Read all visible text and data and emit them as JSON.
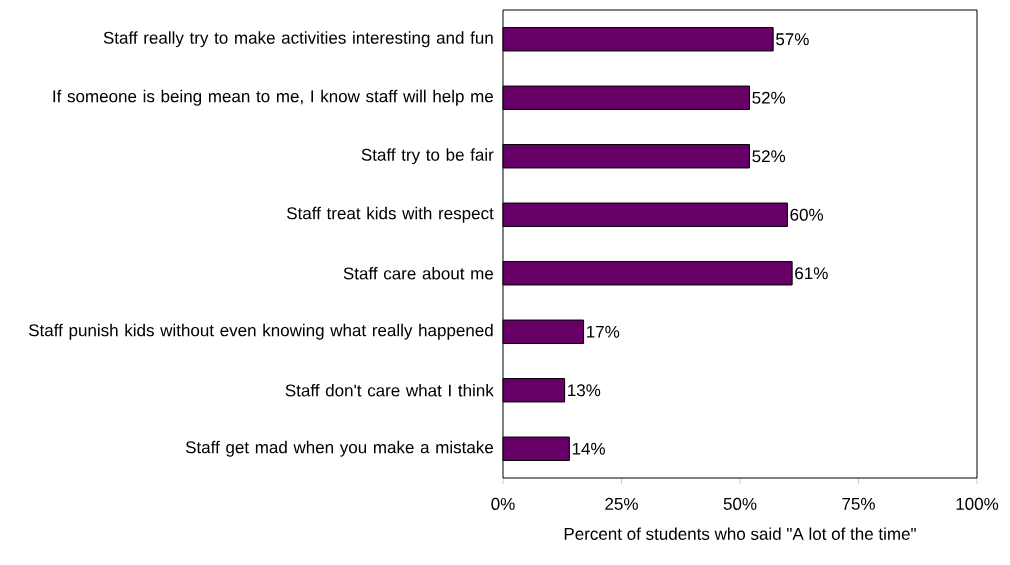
{
  "chart_data": {
    "type": "bar",
    "orientation": "horizontal",
    "xlabel": "Percent of students who said \"A lot of the time\"",
    "categories": [
      "Staff really try to make activities interesting and fun",
      "If someone is being mean to me, I know staff will help me",
      "Staff try to be fair",
      "Staff treat kids with respect",
      "Staff care about me",
      "Staff punish kids without even knowing what really happened",
      "Staff don't care what I think",
      "Staff get mad when you make a mistake"
    ],
    "values": [
      57,
      52,
      52,
      60,
      61,
      17,
      13,
      14
    ],
    "value_labels": [
      "57%",
      "52%",
      "52%",
      "60%",
      "61%",
      "17%",
      "13%",
      "14%"
    ],
    "color": "#660066",
    "xlim": [
      0,
      100
    ],
    "xticks": [
      {
        "value": 0,
        "label": "0%"
      },
      {
        "value": 25,
        "label": "25%"
      },
      {
        "value": 50,
        "label": "50%"
      },
      {
        "value": 75,
        "label": "75%"
      },
      {
        "value": 100,
        "label": "100%"
      }
    ]
  }
}
